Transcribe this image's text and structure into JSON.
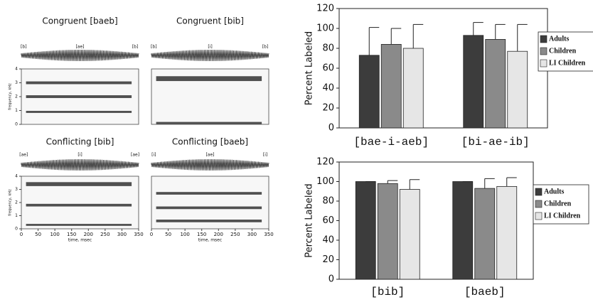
{
  "chart_data": [
    {
      "type": "spectrogram",
      "title": "Congruent [baeb]",
      "segment_labels": [
        "[b]",
        "[ae]",
        "[b]"
      ],
      "ylabel": "frequency, kHz",
      "ylim": [
        0,
        4
      ],
      "yticks": [
        0,
        1,
        2,
        3,
        4
      ]
    },
    {
      "type": "spectrogram",
      "title": "Congruent [bib]",
      "segment_labels": [
        "[b]",
        "[i]",
        "[b]"
      ]
    },
    {
      "type": "spectrogram",
      "title": "Conflicting [bib]",
      "segment_labels": [
        "[ae]",
        "[i]",
        "[ae]"
      ],
      "ylabel": "frequency, kHz",
      "ylim": [
        0,
        4
      ],
      "yticks": [
        0,
        1,
        2,
        3,
        4
      ],
      "xlabel": "time, msec",
      "xlim": [
        0,
        350
      ],
      "xticks": [
        0,
        50,
        100,
        150,
        200,
        250,
        300,
        350
      ]
    },
    {
      "type": "spectrogram",
      "title": "Conflicting [baeb]",
      "segment_labels": [
        "[i]",
        "[ae]",
        "[i]"
      ],
      "xlabel": "time, msec",
      "xlim": [
        0,
        350
      ],
      "xticks": [
        0,
        50,
        100,
        150,
        200,
        250,
        300,
        350
      ]
    },
    {
      "type": "bar",
      "ylabel": "Percent Labeled",
      "categories": [
        "[bae-i-aeb]",
        "[bi-ae-ib]"
      ],
      "series": [
        {
          "name": "Adults",
          "color": "#3c3c3c",
          "values": [
            73,
            93
          ],
          "errors": [
            28,
            13
          ]
        },
        {
          "name": "Children",
          "color": "#8a8a8a",
          "values": [
            84,
            89
          ],
          "errors": [
            16,
            15
          ]
        },
        {
          "name": "LI Children",
          "color": "#e6e6e6",
          "values": [
            80,
            77
          ],
          "errors": [
            24,
            27
          ]
        }
      ],
      "ylim": [
        0,
        120
      ],
      "yticks": [
        0,
        20,
        40,
        60,
        80,
        100,
        120
      ],
      "legend": "right"
    },
    {
      "type": "bar",
      "ylabel": "Percent Labeled",
      "categories": [
        "[bib]",
        "[baeb]"
      ],
      "series": [
        {
          "name": "Adults",
          "color": "#3c3c3c",
          "values": [
            100,
            100
          ],
          "errors": [
            0,
            0
          ]
        },
        {
          "name": "Children",
          "color": "#8a8a8a",
          "values": [
            98,
            93
          ],
          "errors": [
            3,
            10
          ]
        },
        {
          "name": "LI Children",
          "color": "#e6e6e6",
          "values": [
            92,
            95
          ],
          "errors": [
            10,
            9
          ]
        }
      ],
      "ylim": [
        0,
        120
      ],
      "yticks": [
        0,
        20,
        40,
        60,
        80,
        100,
        120
      ],
      "legend": "right"
    }
  ]
}
